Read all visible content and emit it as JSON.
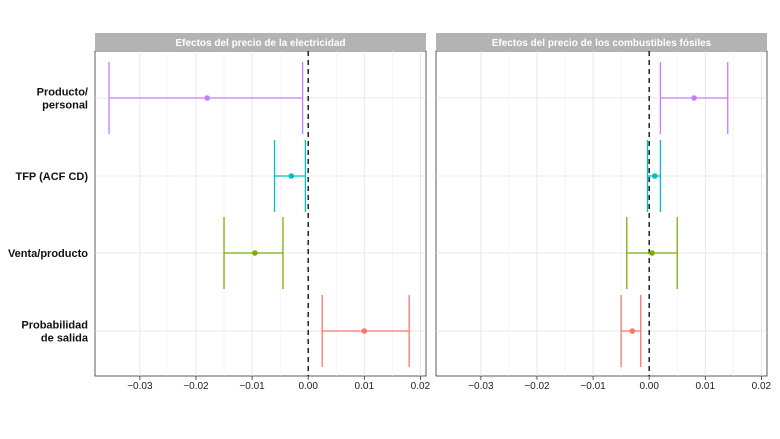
{
  "chart_data": {
    "type": "forest",
    "categories": [
      {
        "lines": [
          "Producto/",
          "personal"
        ],
        "color": "#c77cff"
      },
      {
        "lines": [
          "TFP (ACF CD)"
        ],
        "color": "#00bfc4"
      },
      {
        "lines": [
          "Venta/producto"
        ],
        "color": "#7cae00"
      },
      {
        "lines": [
          "Probabilidad",
          "de salida"
        ],
        "color": "#f8766d"
      }
    ],
    "panels": [
      {
        "title": "Efectos del precio de la electricidad",
        "xlim": [
          -0.038,
          0.021
        ],
        "ticks": [
          -0.03,
          -0.02,
          -0.01,
          0.0,
          0.01,
          0.02
        ],
        "tick_labels": [
          "−0.03",
          "−0.02",
          "−0.01",
          "0.00",
          "0.01",
          "0.02"
        ],
        "estimates": [
          {
            "est": -0.018,
            "low": -0.0355,
            "high": -0.001
          },
          {
            "est": -0.003,
            "low": -0.006,
            "high": -0.0005
          },
          {
            "est": -0.0095,
            "low": -0.015,
            "high": -0.0045
          },
          {
            "est": 0.01,
            "low": 0.0025,
            "high": 0.018
          }
        ]
      },
      {
        "title": "Efectos del precio de los combustibles fósiles",
        "xlim": [
          -0.038,
          0.021
        ],
        "ticks": [
          -0.03,
          -0.02,
          -0.01,
          0.0,
          0.01,
          0.02
        ],
        "tick_labels": [
          "−0.03",
          "−0.02",
          "−0.01",
          "0.00",
          "0.01",
          "0.02"
        ],
        "estimates": [
          {
            "est": 0.008,
            "low": 0.002,
            "high": 0.014
          },
          {
            "est": 0.001,
            "low": -0.0003,
            "high": 0.002
          },
          {
            "est": 0.0005,
            "low": -0.004,
            "high": 0.005
          },
          {
            "est": -0.003,
            "low": -0.005,
            "high": -0.0015
          }
        ]
      }
    ],
    "reference_line": 0,
    "grid": true
  }
}
